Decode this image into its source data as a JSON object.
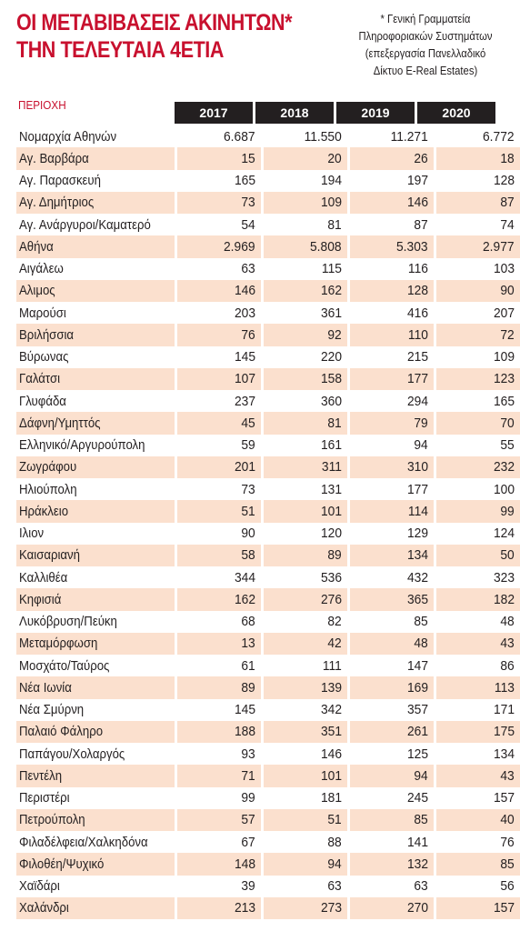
{
  "title_line1": "ΟΙ ΜΕΤΑΒΙΒΑΣΕΙΣ ΑΚΙΝΗΤΩΝ*",
  "title_line2": "ΤΗΝ ΤΕΛΕΥΤΑΙΑ 4ΕΤΙΑ",
  "source_note_line1": "* Γενική Γραμματεία",
  "source_note_line2": "Πληροφοριακών Συστημάτων",
  "source_note_line3": "(επεξεργασία Πανελλαδικό",
  "source_note_line4": "Δίκτυο E-Real Estates)",
  "area_header": "ΠΕΡΙΟΧΗ",
  "years": [
    "2017",
    "2018",
    "2019",
    "2020"
  ],
  "colors": {
    "title": "#c8102e",
    "stripe": "#fbe0ce",
    "header_bg": "#231f20"
  },
  "rows": [
    {
      "area": "Νομαρχία Αθηνών",
      "v": [
        "6.687",
        "11.550",
        "11.271",
        "6.772"
      ]
    },
    {
      "area": "Αγ. Βαρβάρα",
      "v": [
        "15",
        "20",
        "26",
        "18"
      ]
    },
    {
      "area": "Αγ. Παρασκευή",
      "v": [
        "165",
        "194",
        "197",
        "128"
      ]
    },
    {
      "area": "Αγ. Δημήτριος",
      "v": [
        "73",
        "109",
        "146",
        "87"
      ]
    },
    {
      "area": "Αγ. Ανάργυροι/Καματερό",
      "v": [
        "54",
        "81",
        "87",
        "74"
      ]
    },
    {
      "area": "Αθήνα",
      "v": [
        "2.969",
        "5.808",
        "5.303",
        "2.977"
      ]
    },
    {
      "area": "Αιγάλεω",
      "v": [
        "63",
        "115",
        "116",
        "103"
      ]
    },
    {
      "area": "Αλιμος",
      "v": [
        "146",
        "162",
        "128",
        "90"
      ]
    },
    {
      "area": "Μαρούσι",
      "v": [
        "203",
        "361",
        "416",
        "207"
      ]
    },
    {
      "area": "Βριλήσσια",
      "v": [
        "76",
        "92",
        "110",
        "72"
      ]
    },
    {
      "area": "Βύρωνας",
      "v": [
        "145",
        "220",
        "215",
        "109"
      ]
    },
    {
      "area": "Γαλάτσι",
      "v": [
        "107",
        "158",
        "177",
        "123"
      ]
    },
    {
      "area": "Γλυφάδα",
      "v": [
        "237",
        "360",
        "294",
        "165"
      ]
    },
    {
      "area": "Δάφνη/Υμηττός",
      "v": [
        "45",
        "81",
        "79",
        "70"
      ]
    },
    {
      "area": "Ελληνικό/Αργυρούπολη",
      "v": [
        "59",
        "161",
        "94",
        "55"
      ]
    },
    {
      "area": "Ζωγράφου",
      "v": [
        "201",
        "311",
        "310",
        "232"
      ]
    },
    {
      "area": "Ηλιούπολη",
      "v": [
        "73",
        "131",
        "177",
        "100"
      ]
    },
    {
      "area": "Ηράκλειο",
      "v": [
        "51",
        "101",
        "114",
        "99"
      ]
    },
    {
      "area": "Ιλιον",
      "v": [
        "90",
        "120",
        "129",
        "124"
      ]
    },
    {
      "area": "Καισαριανή",
      "v": [
        "58",
        "89",
        "134",
        "50"
      ]
    },
    {
      "area": "Καλλιθέα",
      "v": [
        "344",
        "536",
        "432",
        "323"
      ]
    },
    {
      "area": "Κηφισιά",
      "v": [
        "162",
        "276",
        "365",
        "182"
      ]
    },
    {
      "area": "Λυκόβρυση/Πεύκη",
      "v": [
        "68",
        "82",
        "85",
        "48"
      ]
    },
    {
      "area": "Μεταμόρφωση",
      "v": [
        "13",
        "42",
        "48",
        "43"
      ]
    },
    {
      "area": "Μοσχάτο/Ταύρος",
      "v": [
        "61",
        "111",
        "147",
        "86"
      ]
    },
    {
      "area": "Νέα Ιωνία",
      "v": [
        "89",
        "139",
        "169",
        "113"
      ]
    },
    {
      "area": "Νέα Σμύρνη",
      "v": [
        "145",
        "342",
        "357",
        "171"
      ]
    },
    {
      "area": "Παλαιό Φάληρο",
      "v": [
        "188",
        "351",
        "261",
        "175"
      ]
    },
    {
      "area": "Παπάγου/Χολαργός",
      "v": [
        "93",
        "146",
        "125",
        "134"
      ]
    },
    {
      "area": "Πεντέλη",
      "v": [
        "71",
        "101",
        "94",
        "43"
      ]
    },
    {
      "area": "Περιστέρι",
      "v": [
        "99",
        "181",
        "245",
        "157"
      ]
    },
    {
      "area": "Πετρούπολη",
      "v": [
        "57",
        "51",
        "85",
        "40"
      ]
    },
    {
      "area": "Φιλαδέλφεια/Χαλκηδόνα",
      "v": [
        "67",
        "88",
        "141",
        "76"
      ]
    },
    {
      "area": "Φιλοθέη/Ψυχικό",
      "v": [
        "148",
        "94",
        "132",
        "85"
      ]
    },
    {
      "area": "Χαϊδάρι",
      "v": [
        "39",
        "63",
        "63",
        "56"
      ]
    },
    {
      "area": "Χαλάνδρι",
      "v": [
        "213",
        "273",
        "270",
        "157"
      ]
    }
  ]
}
